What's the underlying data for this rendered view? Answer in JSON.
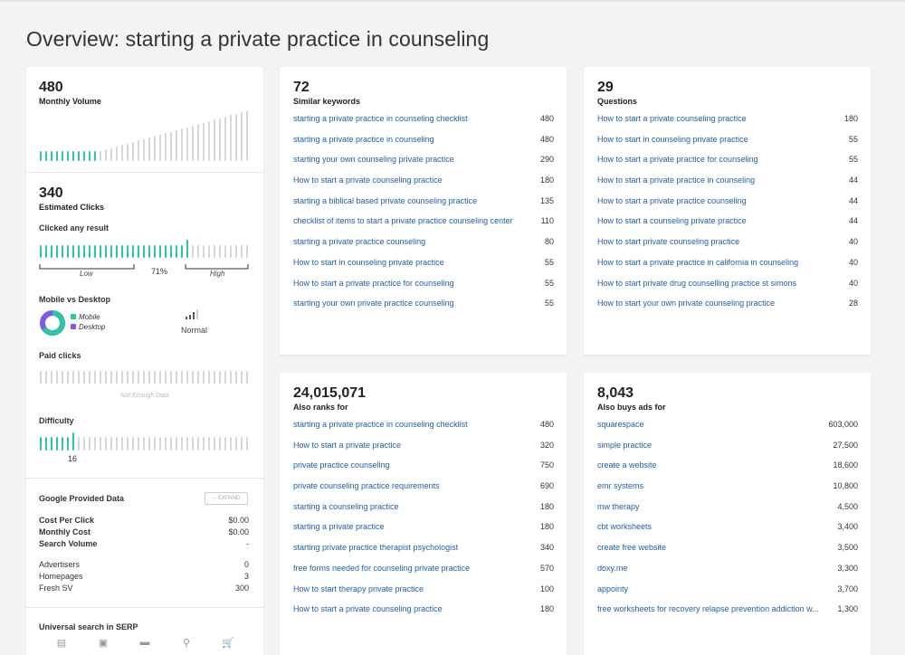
{
  "title": "Overview: starting a private practice in counseling",
  "monthly_volume": {
    "value": "480",
    "label": "Monthly Volume"
  },
  "estimated_clicks": {
    "value": "340",
    "label": "Estimated Clicks",
    "clicked_any_label": "Clicked any result",
    "percent": "71%",
    "low": "Low",
    "high": "High",
    "fill_fraction": 0.71
  },
  "mobile_desktop": {
    "label": "Mobile vs Desktop",
    "mobile": "Mobile",
    "desktop": "Desktop",
    "level": "Normal",
    "colors": {
      "mobile": "#2ec4a6",
      "desktop": "#7b5be6"
    }
  },
  "paid_clicks": {
    "label": "Paid clicks",
    "note": "Not Enough Data"
  },
  "difficulty": {
    "label": "Difficulty",
    "value": "16"
  },
  "google": {
    "label": "Google Provided Data",
    "expand": "EXPAND",
    "rows_bold": [
      {
        "k": "Cost Per Click",
        "v": "$0.00"
      },
      {
        "k": "Monthly Cost",
        "v": "$0.00"
      },
      {
        "k": "Search Volume",
        "v": "-"
      }
    ],
    "rows": [
      {
        "k": "Advertisers",
        "v": "0"
      },
      {
        "k": "Homepages",
        "v": "3"
      },
      {
        "k": "Fresh SV",
        "v": "300"
      }
    ]
  },
  "universal": {
    "label": "Universal search in SERP",
    "icons": [
      "news-icon",
      "image-icon",
      "video-icon",
      "map-pin-icon",
      "shopping-cart-icon"
    ]
  },
  "similar": {
    "count": "72",
    "label": "Similar keywords",
    "rows": [
      {
        "kw": "starting a private practice in counseling checklist",
        "n": "480"
      },
      {
        "kw": "starting a private practice in counseling",
        "n": "480"
      },
      {
        "kw": "starting your own counseling private practice",
        "n": "290"
      },
      {
        "kw": "How to start a private counseling practice",
        "n": "180"
      },
      {
        "kw": "starting a biblical based private counseling practice",
        "n": "135"
      },
      {
        "kw": "checklist of items to start a private practice counseling center",
        "n": "110"
      },
      {
        "kw": "starting a private practice counseling",
        "n": "80"
      },
      {
        "kw": "How to start in counseling private practice",
        "n": "55"
      },
      {
        "kw": "How to start a private practice for counseling",
        "n": "55"
      },
      {
        "kw": "starting your own private practice counseling",
        "n": "55"
      }
    ]
  },
  "questions": {
    "count": "29",
    "label": "Questions",
    "rows": [
      {
        "kw": "How to start a private counseling practice",
        "n": "180"
      },
      {
        "kw": "How to start in counseling private practice",
        "n": "55"
      },
      {
        "kw": "How to start a private practice for counseling",
        "n": "55"
      },
      {
        "kw": "How to start a private practice in counseling",
        "n": "44"
      },
      {
        "kw": "How to start a private practice counseling",
        "n": "44"
      },
      {
        "kw": "How to start a counseling private practice",
        "n": "44"
      },
      {
        "kw": "How to start private counseling practice",
        "n": "40"
      },
      {
        "kw": "How to start a private practice in california in counseling",
        "n": "40"
      },
      {
        "kw": "How to start private drug counselling practice st simons",
        "n": "40"
      },
      {
        "kw": "How to start your own private counseling practice",
        "n": "28"
      }
    ]
  },
  "also_ranks": {
    "count": "24,015,071",
    "label": "Also ranks for",
    "rows": [
      {
        "kw": "starting a private practice in counseling checklist",
        "n": "480"
      },
      {
        "kw": "How to start a private practice",
        "n": "320"
      },
      {
        "kw": "private practice counseling",
        "n": "750"
      },
      {
        "kw": "private counseling practice requirements",
        "n": "690"
      },
      {
        "kw": "starting a counseling practice",
        "n": "180"
      },
      {
        "kw": "starting a private practice",
        "n": "180"
      },
      {
        "kw": "starting private practice therapist psychologist",
        "n": "340"
      },
      {
        "kw": "free forms needed for counseling private practice",
        "n": "570"
      },
      {
        "kw": "How to start therapy private practice",
        "n": "100"
      },
      {
        "kw": "How to start a private counseling practice",
        "n": "180"
      }
    ]
  },
  "also_buys": {
    "count": "8,043",
    "label": "Also buys ads for",
    "rows": [
      {
        "kw": "squarespace",
        "n": "603,000"
      },
      {
        "kw": "simple practice",
        "n": "27,500"
      },
      {
        "kw": "create a website",
        "n": "18,600"
      },
      {
        "kw": "emr systems",
        "n": "10,800"
      },
      {
        "kw": "mw therapy",
        "n": "4,500"
      },
      {
        "kw": "cbt worksheets",
        "n": "3,400"
      },
      {
        "kw": "create free website",
        "n": "3,500"
      },
      {
        "kw": "doxy.me",
        "n": "3,300"
      },
      {
        "kw": "appointy",
        "n": "3,700"
      },
      {
        "kw": "free worksheets for recovery relapse prevention addiction w...",
        "n": "1,300"
      }
    ]
  }
}
